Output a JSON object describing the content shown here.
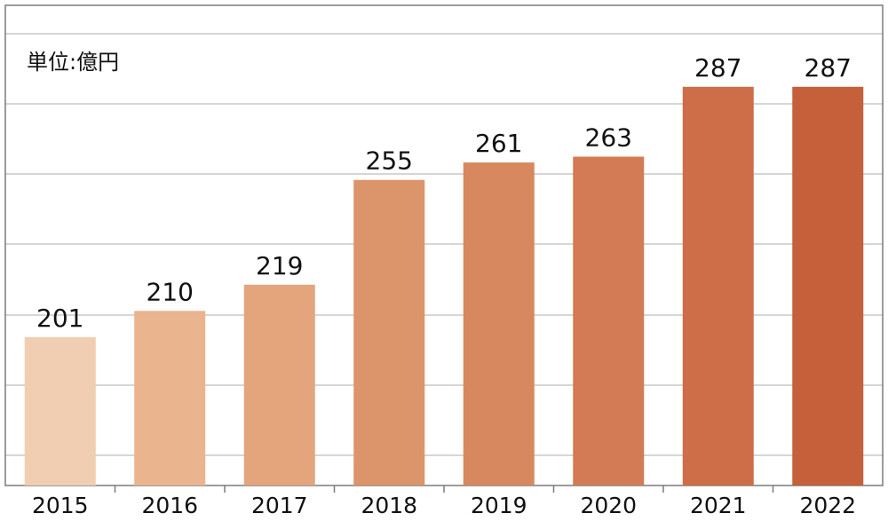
{
  "chart_data": {
    "type": "bar",
    "title": "",
    "unit_label": "単位:億円",
    "xlabel": "",
    "ylabel": "",
    "categories": [
      "2015",
      "2016",
      "2017",
      "2018",
      "2019",
      "2020",
      "2021",
      "2022"
    ],
    "values": [
      201,
      210,
      219,
      255,
      261,
      263,
      287,
      287
    ],
    "value_labels": [
      "201",
      "210",
      "219",
      "255",
      "261",
      "263",
      "287",
      "287"
    ],
    "bar_colors": [
      "#F1CDB1",
      "#EAB48F",
      "#E4A47C",
      "#DC946A",
      "#D7885E",
      "#D27B55",
      "#CD6E49",
      "#C5603B"
    ],
    "ylim": [
      150,
      315
    ],
    "grid": true,
    "legend": "none",
    "gridline_color": "#BDBDBD",
    "frame_color": "#7A7A7A"
  }
}
